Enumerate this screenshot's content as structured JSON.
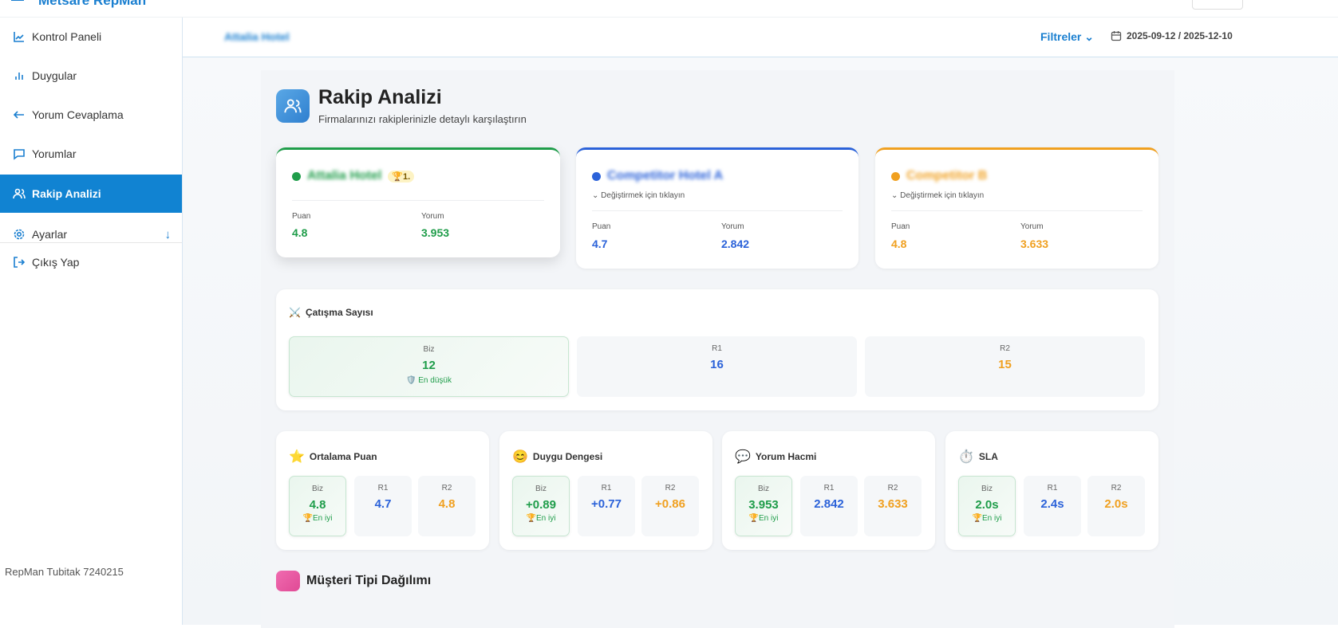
{
  "app": {
    "brand": "Metsare RepMan",
    "footer": "RepMan Tubitak 7240215"
  },
  "sidebar": {
    "items": [
      {
        "label": "Kontrol Paneli",
        "icon": "chart-line-icon"
      },
      {
        "label": "Duygular",
        "icon": "bar-chart-icon"
      },
      {
        "label": "Yorum Cevaplama",
        "icon": "reply-icon"
      },
      {
        "label": "Yorumlar",
        "icon": "message-icon"
      },
      {
        "label": "Rakip Analizi",
        "icon": "users-icon",
        "active": true
      },
      {
        "label": "Ayarlar",
        "icon": "gear-icon"
      },
      {
        "label": "Çıkış Yap",
        "icon": "logout-icon"
      }
    ]
  },
  "header": {
    "hotel": "Attalia Hotel",
    "filters": "Filtreler",
    "date_range": "2025-09-12 / 2025-12-10"
  },
  "page": {
    "title": "Rakip Analizi",
    "subtitle": "Firmalarınızı rakiplerinizle detaylı karşılaştırın"
  },
  "colors": {
    "us": "#1f9d4a",
    "r1": "#2b62d9",
    "r2": "#f0a020",
    "accent": "#1183d2"
  },
  "competitors": [
    {
      "name": "Attalia Hotel",
      "rank": "1.",
      "puan_label": "Puan",
      "yorum_label": "Yorum",
      "puan": "4.8",
      "yorum": "3.953"
    },
    {
      "name": "Competitor Hotel A",
      "change": "Değiştirmek için tıklayın",
      "puan_label": "Puan",
      "yorum_label": "Yorum",
      "puan": "4.7",
      "yorum": "2.842"
    },
    {
      "name": "Competitor B",
      "change": "Değiştirmek için tıklayın",
      "puan_label": "Puan",
      "yorum_label": "Yorum",
      "puan": "4.8",
      "yorum": "3.633"
    }
  ],
  "conflict": {
    "title": "Çatışma Sayısı",
    "labels": [
      "Biz",
      "R1",
      "R2"
    ],
    "values": [
      "12",
      "16",
      "15"
    ],
    "note": "En düşük"
  },
  "metrics": [
    {
      "title": "Ortalama Puan",
      "icon": "star-icon",
      "labels": [
        "Biz",
        "R1",
        "R2"
      ],
      "values": [
        "4.8",
        "4.7",
        "4.8"
      ],
      "note": "En iyi"
    },
    {
      "title": "Duygu Dengesi",
      "icon": "smile-icon",
      "labels": [
        "Biz",
        "R1",
        "R2"
      ],
      "values": [
        "+0.89",
        "+0.77",
        "+0.86"
      ],
      "note": "En iyi"
    },
    {
      "title": "Yorum Hacmi",
      "icon": "speech-bubble-icon",
      "labels": [
        "Biz",
        "R1",
        "R2"
      ],
      "values": [
        "3.953",
        "2.842",
        "3.633"
      ],
      "note": "En iyi"
    },
    {
      "title": "SLA",
      "icon": "stopwatch-icon",
      "labels": [
        "Biz",
        "R1",
        "R2"
      ],
      "values": [
        "2.0s",
        "2.4s",
        "2.0s"
      ],
      "note": "En iyi"
    }
  ],
  "next_section": {
    "title": "Müşteri Tipi Dağılımı"
  }
}
